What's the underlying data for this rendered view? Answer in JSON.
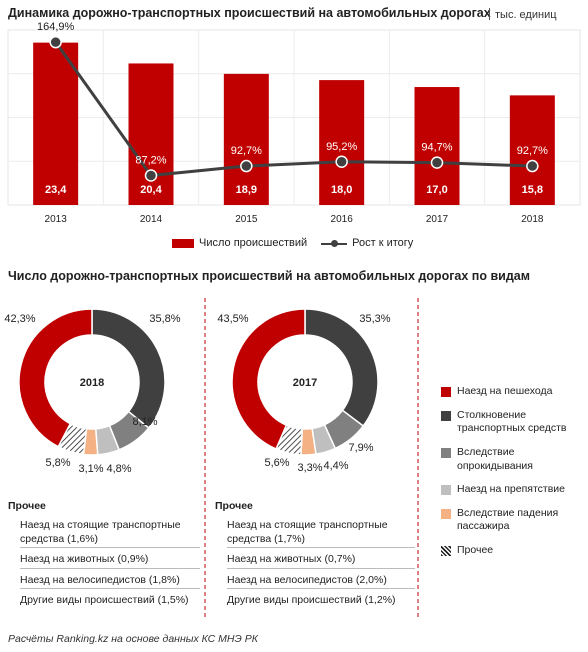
{
  "header": {
    "title": "Динамика дорожно-транспортных происшествий на автомобильных дорогах",
    "unit": "тыс. единиц"
  },
  "section2_title": "Число дорожно-транспортных происшествий на автомобильных дорогах по видам",
  "source": "Расчёты Ranking.kz на основе данных  КС МНЭ РК",
  "legend_top": {
    "bar_label": "Число происшествий",
    "line_label": "Рост к итогу"
  },
  "legend_right": [
    {
      "label": "Наезд на пешехода",
      "color": "#c00000",
      "pattern": false
    },
    {
      "label": "Столкновение транспортных средств",
      "color": "#404040",
      "pattern": false
    },
    {
      "label": "Вследствие опрокидывания",
      "color": "#808080",
      "pattern": false
    },
    {
      "label": "Наезд на препятствие",
      "color": "#bfbfbf",
      "pattern": false
    },
    {
      "label": "Вследствие падения пассажира",
      "color": "#f4b183",
      "pattern": false
    },
    {
      "label": "Прочее",
      "color": "#ffffff",
      "pattern": true
    }
  ],
  "other_2018": {
    "heading": "Прочее",
    "items": [
      "Наезд на стоящие транспортные средства (1,6%)",
      "Наезд на животных (0,9%)",
      "Наезд на велосипедистов (1,8%)",
      "Другие виды происшествий (1,5%)"
    ]
  },
  "other_2017": {
    "heading": "Прочее",
    "items": [
      "Наезд на стоящие транспортные средства (1,7%)",
      "Наезд на животных (0,7%)",
      "Наезд на велосипедистов (2,0%)",
      "Другие виды происшествий (1,2%)"
    ]
  },
  "chart_data": [
    {
      "type": "bar",
      "title": "Динамика дорожно-транспортных происшествий на автомобильных дорогах",
      "unit": "тыс. единиц",
      "categories": [
        "2013",
        "2014",
        "2015",
        "2016",
        "2017",
        "2018"
      ],
      "series": [
        {
          "name": "Число происшествий",
          "type": "bar",
          "values": [
            23.4,
            20.4,
            18.9,
            18.0,
            17.0,
            15.8
          ],
          "labels": [
            "23,4",
            "20,4",
            "18,9",
            "18,0",
            "17,0",
            "15,8"
          ],
          "color": "#c00000"
        },
        {
          "name": "Рост к итогу",
          "type": "line",
          "values": [
            164.9,
            87.2,
            92.7,
            95.2,
            94.7,
            92.7
          ],
          "labels": [
            "164,9%",
            "87,2%",
            "92,7%",
            "95,2%",
            "94,7%",
            "92,7%"
          ],
          "color": "#404040"
        }
      ],
      "grid": true
    },
    {
      "type": "pie",
      "center_label": "2018",
      "slices": [
        {
          "name": "Наезд на пешехода",
          "value": 42.3,
          "label": "42,3%",
          "color": "#c00000"
        },
        {
          "name": "Столкновение транспортных средств",
          "value": 35.8,
          "label": "35,8%",
          "color": "#404040"
        },
        {
          "name": "Вследствие опрокидывания",
          "value": 8.1,
          "label": "8,1%",
          "color": "#808080"
        },
        {
          "name": "Наезд на препятствие",
          "value": 4.8,
          "label": "4,8%",
          "color": "#bfbfbf"
        },
        {
          "name": "Вследствие падения пассажира",
          "value": 3.1,
          "label": "3,1%",
          "color": "#f4b183"
        },
        {
          "name": "Прочее",
          "value": 5.8,
          "label": "5,8%",
          "color": "pattern"
        }
      ]
    },
    {
      "type": "pie",
      "center_label": "2017",
      "slices": [
        {
          "name": "Наезд на пешехода",
          "value": 43.5,
          "label": "43,5%",
          "color": "#c00000"
        },
        {
          "name": "Столкновение транспортных средств",
          "value": 35.3,
          "label": "35,3%",
          "color": "#404040"
        },
        {
          "name": "Вследствие опрокидывания",
          "value": 7.9,
          "label": "7,9%",
          "color": "#808080"
        },
        {
          "name": "Наезд на препятствие",
          "value": 4.4,
          "label": "4,4%",
          "color": "#bfbfbf"
        },
        {
          "name": "Вследствие падения пассажира",
          "value": 3.3,
          "label": "3,3%",
          "color": "#f4b183"
        },
        {
          "name": "Прочее",
          "value": 5.6,
          "label": "5,6%",
          "color": "pattern"
        }
      ]
    }
  ]
}
